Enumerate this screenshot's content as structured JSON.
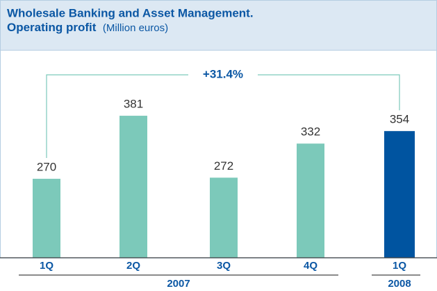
{
  "chart_data": {
    "type": "bar",
    "title": "Wholesale Banking and Asset Management.",
    "subtitle": "Operating profit",
    "unit": "(Million euros)",
    "categories": [
      "1Q",
      "2Q",
      "3Q",
      "4Q",
      "1Q"
    ],
    "x_groups": [
      "2007",
      "2007",
      "2007",
      "2007",
      "2008"
    ],
    "values": [
      270,
      381,
      272,
      332,
      354
    ],
    "colors": [
      "#7cc9ba",
      "#7cc9ba",
      "#7cc9ba",
      "#7cc9ba",
      "#0054a0"
    ],
    "ylim": [
      131,
      475
    ],
    "annotation": "+31.4%"
  }
}
